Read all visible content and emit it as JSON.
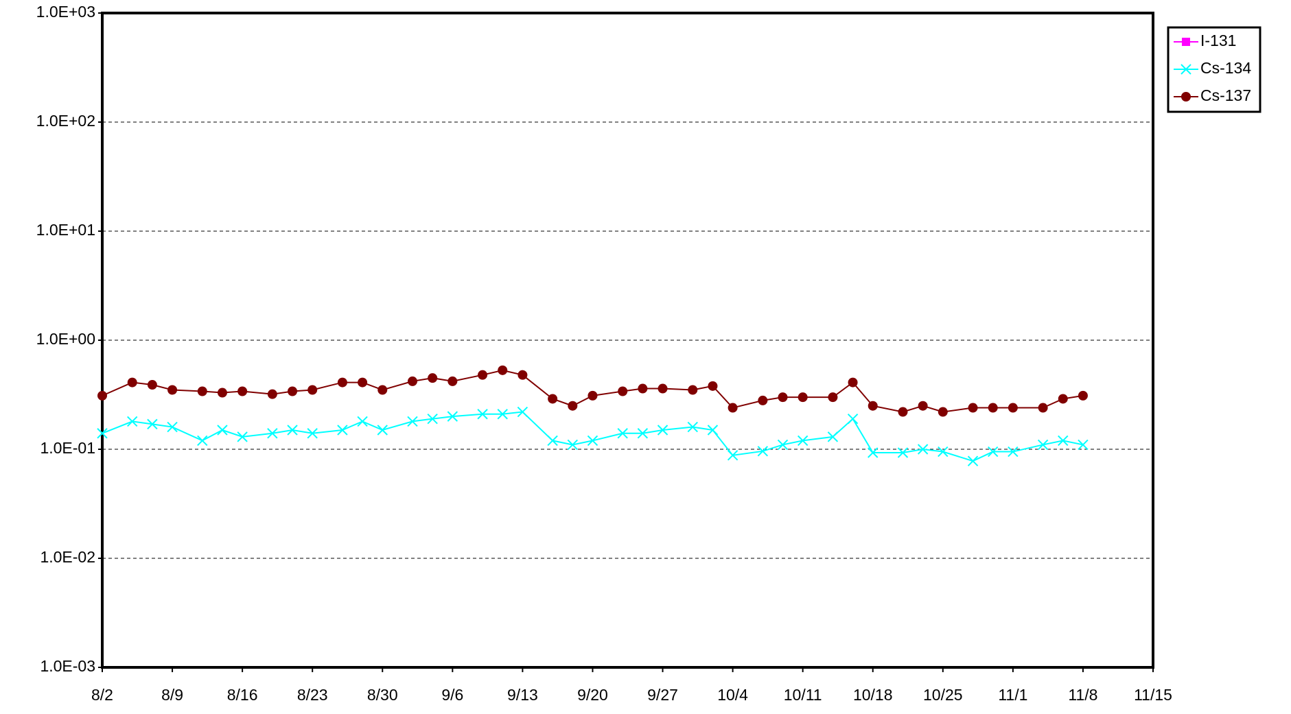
{
  "chart_data": {
    "type": "line",
    "x": [
      "8/2",
      "8/5",
      "8/7",
      "8/9",
      "8/12",
      "8/14",
      "8/16",
      "8/19",
      "8/21",
      "8/23",
      "8/26",
      "8/28",
      "8/30",
      "9/2",
      "9/4",
      "9/6",
      "9/9",
      "9/11",
      "9/13",
      "9/16",
      "9/18",
      "9/20",
      "9/23",
      "9/25",
      "9/27",
      "9/30",
      "10/2",
      "10/4",
      "10/7",
      "10/9",
      "10/11",
      "10/14",
      "10/16",
      "10/18",
      "10/21",
      "10/23",
      "10/25",
      "10/28",
      "10/30",
      "11/1",
      "11/4",
      "11/6",
      "11/8"
    ],
    "series": [
      {
        "name": "I-131",
        "color": "#ff00ff",
        "marker": "square",
        "values": [
          null,
          null,
          null,
          null,
          null,
          null,
          null,
          null,
          null,
          null,
          null,
          null,
          null,
          null,
          null,
          null,
          null,
          null,
          null,
          null,
          null,
          null,
          null,
          null,
          null,
          null,
          null,
          null,
          null,
          null,
          null,
          null,
          null,
          null,
          null,
          null,
          null,
          null,
          null,
          null,
          null,
          null,
          null
        ]
      },
      {
        "name": "Cs-134",
        "color": "#00ffff",
        "marker": "x",
        "values": [
          0.14,
          0.18,
          0.17,
          0.16,
          0.12,
          0.15,
          0.13,
          0.14,
          0.15,
          0.14,
          0.15,
          0.18,
          0.15,
          0.18,
          0.19,
          0.2,
          0.21,
          0.21,
          0.22,
          0.12,
          0.11,
          0.12,
          0.14,
          0.14,
          0.15,
          0.16,
          0.15,
          0.088,
          0.096,
          0.11,
          0.12,
          0.13,
          0.19,
          0.093,
          0.093,
          0.1,
          0.095,
          0.078,
          0.095,
          0.095,
          0.11,
          0.12,
          0.11
        ]
      },
      {
        "name": "Cs-137",
        "color": "#800000",
        "marker": "circle",
        "values": [
          0.31,
          0.41,
          0.39,
          0.35,
          0.34,
          0.33,
          0.34,
          0.32,
          0.34,
          0.35,
          0.41,
          0.41,
          0.35,
          0.42,
          0.45,
          0.42,
          0.48,
          0.53,
          0.48,
          0.29,
          0.25,
          0.31,
          0.34,
          0.36,
          0.36,
          0.35,
          0.38,
          0.24,
          0.28,
          0.3,
          0.3,
          0.3,
          0.41,
          0.25,
          0.22,
          0.25,
          0.22,
          0.24,
          0.24,
          0.24,
          0.24,
          0.29,
          0.31
        ]
      }
    ],
    "xlim": [
      "8/2",
      "11/15"
    ],
    "xticks": [
      "8/2",
      "8/9",
      "8/16",
      "8/23",
      "8/30",
      "9/6",
      "9/13",
      "9/20",
      "9/27",
      "10/4",
      "10/11",
      "10/18",
      "10/25",
      "11/1",
      "11/8",
      "11/15"
    ],
    "ylim": [
      0.001,
      1000
    ],
    "log_y": true,
    "yticks": [
      {
        "value": 0.001,
        "label": "1.0E-03"
      },
      {
        "value": 0.01,
        "label": "1.0E-02"
      },
      {
        "value": 0.1,
        "label": "1.0E-01"
      },
      {
        "value": 1,
        "label": "1.0E+00"
      },
      {
        "value": 10,
        "label": "1.0E+01"
      },
      {
        "value": 100,
        "label": "1.0E+02"
      },
      {
        "value": 1000,
        "label": "1.0E+03"
      }
    ],
    "grid": true,
    "legend": "top-right"
  }
}
